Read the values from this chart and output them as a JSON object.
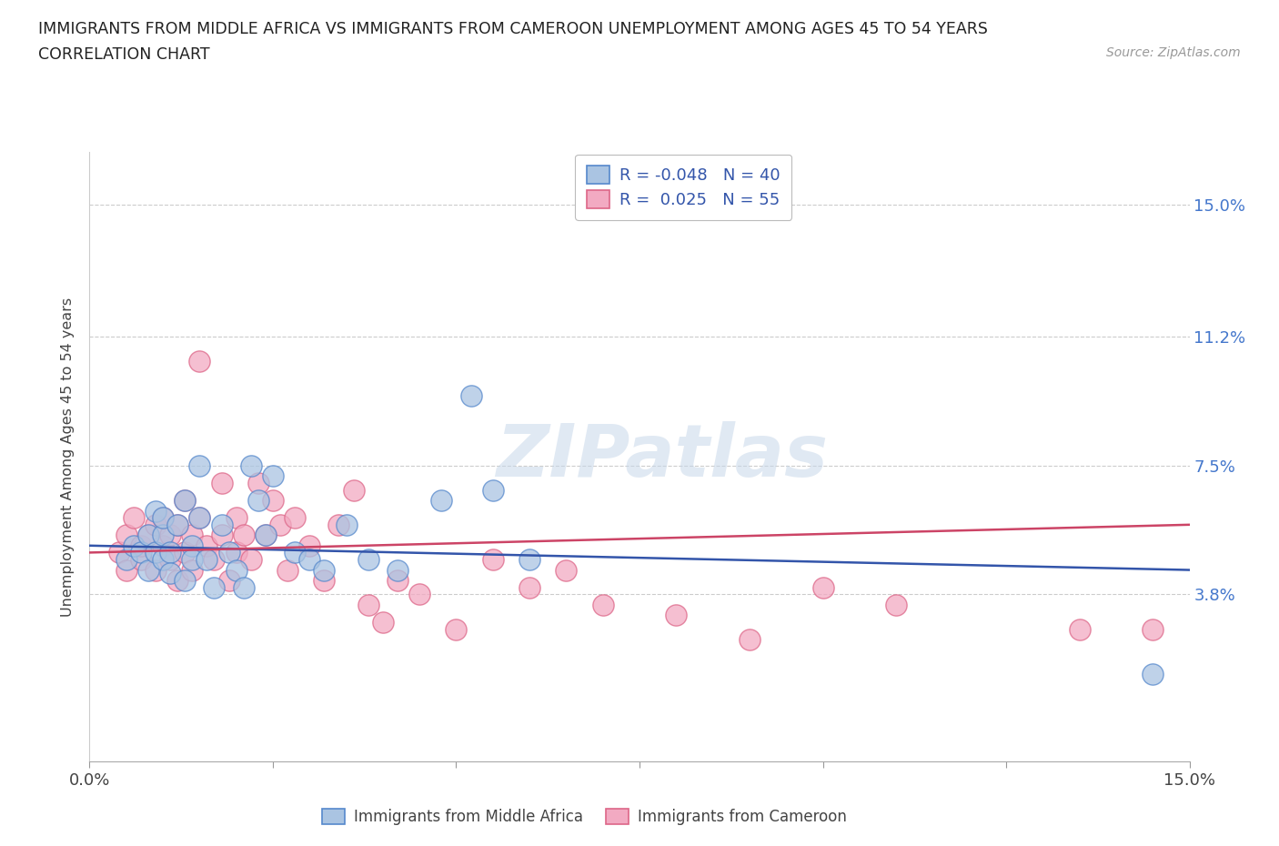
{
  "title_line1": "IMMIGRANTS FROM MIDDLE AFRICA VS IMMIGRANTS FROM CAMEROON UNEMPLOYMENT AMONG AGES 45 TO 54 YEARS",
  "title_line2": "CORRELATION CHART",
  "source_text": "Source: ZipAtlas.com",
  "ylabel": "Unemployment Among Ages 45 to 54 years",
  "xlim": [
    0.0,
    0.15
  ],
  "ylim": [
    -0.01,
    0.165
  ],
  "yticks": [
    0.0,
    0.038,
    0.075,
    0.112,
    0.15
  ],
  "ytick_labels": [
    "",
    "3.8%",
    "7.5%",
    "11.2%",
    "15.0%"
  ],
  "xticks": [
    0.0,
    0.025,
    0.05,
    0.075,
    0.1,
    0.125,
    0.15
  ],
  "xtick_labels_show": [
    "0.0%",
    "",
    "",
    "",
    "",
    "",
    "15.0%"
  ],
  "watermark": "ZIPatlas",
  "legend_label_blue": "Immigrants from Middle Africa",
  "legend_label_pink": "Immigrants from Cameroon",
  "blue_color": "#aac4e2",
  "pink_color": "#f2aac2",
  "blue_edge": "#5588cc",
  "pink_edge": "#dd6688",
  "line_blue_color": "#3355aa",
  "line_pink_color": "#cc4466",
  "blue_r": -0.048,
  "blue_n": 40,
  "pink_r": 0.025,
  "pink_n": 55,
  "blue_scatter_x": [
    0.005,
    0.006,
    0.007,
    0.008,
    0.008,
    0.009,
    0.009,
    0.01,
    0.01,
    0.01,
    0.011,
    0.011,
    0.012,
    0.013,
    0.013,
    0.014,
    0.014,
    0.015,
    0.015,
    0.016,
    0.017,
    0.018,
    0.019,
    0.02,
    0.021,
    0.022,
    0.023,
    0.024,
    0.025,
    0.028,
    0.03,
    0.032,
    0.035,
    0.038,
    0.042,
    0.048,
    0.052,
    0.055,
    0.06,
    0.145
  ],
  "blue_scatter_y": [
    0.048,
    0.052,
    0.05,
    0.055,
    0.045,
    0.062,
    0.05,
    0.055,
    0.06,
    0.048,
    0.05,
    0.044,
    0.058,
    0.065,
    0.042,
    0.052,
    0.048,
    0.075,
    0.06,
    0.048,
    0.04,
    0.058,
    0.05,
    0.045,
    0.04,
    0.075,
    0.065,
    0.055,
    0.072,
    0.05,
    0.048,
    0.045,
    0.058,
    0.048,
    0.045,
    0.065,
    0.095,
    0.068,
    0.048,
    0.015
  ],
  "pink_scatter_x": [
    0.004,
    0.005,
    0.005,
    0.006,
    0.007,
    0.007,
    0.008,
    0.009,
    0.009,
    0.01,
    0.01,
    0.011,
    0.011,
    0.012,
    0.012,
    0.013,
    0.013,
    0.014,
    0.014,
    0.015,
    0.015,
    0.016,
    0.017,
    0.018,
    0.018,
    0.019,
    0.02,
    0.02,
    0.021,
    0.022,
    0.023,
    0.024,
    0.025,
    0.026,
    0.027,
    0.028,
    0.03,
    0.032,
    0.034,
    0.036,
    0.038,
    0.04,
    0.042,
    0.045,
    0.05,
    0.055,
    0.06,
    0.065,
    0.07,
    0.08,
    0.09,
    0.1,
    0.11,
    0.135,
    0.145
  ],
  "pink_scatter_y": [
    0.05,
    0.045,
    0.055,
    0.06,
    0.048,
    0.052,
    0.055,
    0.045,
    0.058,
    0.052,
    0.06,
    0.048,
    0.055,
    0.042,
    0.058,
    0.065,
    0.05,
    0.045,
    0.055,
    0.105,
    0.06,
    0.052,
    0.048,
    0.055,
    0.07,
    0.042,
    0.05,
    0.06,
    0.055,
    0.048,
    0.07,
    0.055,
    0.065,
    0.058,
    0.045,
    0.06,
    0.052,
    0.042,
    0.058,
    0.068,
    0.035,
    0.03,
    0.042,
    0.038,
    0.028,
    0.048,
    0.04,
    0.045,
    0.035,
    0.032,
    0.025,
    0.04,
    0.035,
    0.028,
    0.028
  ]
}
